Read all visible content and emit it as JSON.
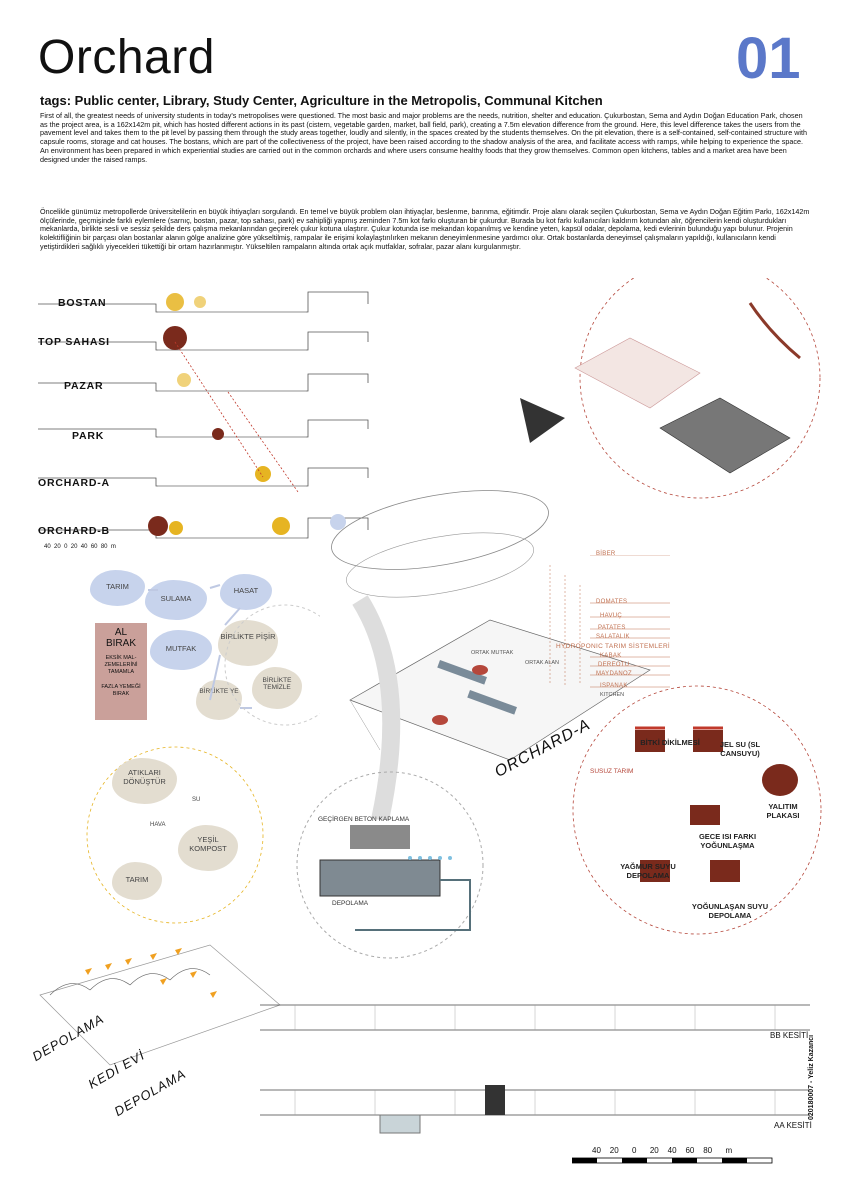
{
  "header": {
    "title": "Orchard",
    "sheet_number": "01"
  },
  "tags": "tags: Public center, Library, Study Center, Agriculture in the Metropolis, Communal Kitchen",
  "paragraph_en": "First of all, the greatest needs of university students in today's metropolises were questioned. The most basic and major problems are the needs, nutrition, shelter and education. Çukurbostan, Sema and Aydın Doğan Education Park, chosen as the project area, is a 162x142m pit, which has hosted different actions in its past (cistern, vegetable garden, market, ball field, park), creating a 7.5m elevation difference from the ground. Here, this level difference takes the users from the pavement level and takes them to the pit level by passing them through the study areas together, loudly and silently, in the spaces created by the students themselves. On the pit elevation, there is a self-contained, self-contained structure with capsule rooms, storage and cat houses. The bostans, which are part of the collectiveness of the project, have been raised according to the shadow analysis of the area, and facilitate access with ramps, while helping to experience the space. An environment has been prepared in which experiential studies are carried out in the common orchards and where users consume healthy foods that they grow themselves. Common open kitchens, tables and a market area have been designed under the raised ramps.",
  "paragraph_tr": "Öncelikle günümüz metropollerde üniversitelilerin en büyük ihtiyaçları sorgulandı. En temel ve büyük problem olan ihtiyaçlar, beslenme, barınma, eğitimdir. Proje alanı olarak seçilen Çukurbostan, Sema ve Aydın Doğan Eğitim Parkı, 162x142m ölçülerinde, geçmişinde farklı eylemlere (sarnıç, bostan, pazar, top sahası, park) ev sahipliği yapmış zeminden 7.5m kot farkı oluşturan bir çukurdur. Burada bu kot farkı kullanıcıları kaldırım kotundan alır, öğrencilerin kendi oluşturdukları mekanlarda, birlikte sesli ve sessiz şekilde ders çalışma mekanlarından geçirerek çukur kotuna ulaştırır. Çukur kotunda ise mekandan kopanılmış ve kendine yeten, kapsül odalar, depolama, kedi evlerinin bulunduğu yapı bulunur. Projenin kolektifliğinin bir parçası olan bostanlar alanın gölge analizine göre yükseltilmiş, rampalar ile erişimi kolaylaştırılırken mekanın deneyimlenmesine yardımcı olur. Ortak bostanlarda deneyimsel çalışmaların yapıldığı, kullanıcıların kendi yetiştirdikleri sağlıklı yiyecekleri tükettiği bir ortam hazırlanmıştır. Yükseltilen rampaların altında ortak açık mutfaklar, sofralar, pazar alanı kurgulanmıştır.",
  "sections": [
    "BOSTAN",
    "TOP SAHASI",
    "PAZAR",
    "PARK",
    "ORCHARD-A",
    "ORCHARD-B"
  ],
  "section_scale": [
    "40",
    "20",
    "0",
    "20",
    "40",
    "60",
    "80",
    "m"
  ],
  "cycle": {
    "tarim": "TARIM",
    "sulama": "SULAMA",
    "hasat": "HASAT",
    "mutfak": "MUTFAK",
    "birlikte_pisir": "BİRLİKTE PİŞİR",
    "birlikte_temizle": "BİRLİKTE TEMİZLE",
    "birlikte_ye": "BİRLİKTE YE"
  },
  "al_birak": {
    "title": "AL BIRAK",
    "line1": "EKSİK MAL-ZEMELERİNİ TAMAMLA",
    "line2": "FAZLA YEMEĞİ BIRAK"
  },
  "waste": {
    "atiklari": "ATIKLARI DÖNÜŞTÜR",
    "su": "SU",
    "hava": "HAVA",
    "kompost": "YEŞİL KOMPOST",
    "tarim": "TARIM"
  },
  "plants": [
    "BİBER",
    "DOMATES",
    "HAVUÇ",
    "PATATES",
    "SALATALIK",
    "HYDROPONIC TARIM SİSTEMLERİ",
    "KABAK",
    "DEREOTU",
    "MAYDANOZ",
    "ISPANAK"
  ],
  "orchard_label": "ORCHARD-A",
  "susuz_tarim": "SUSUZ TARIM",
  "plan_labels": {
    "ortak_mutfak": "ORTAK MUTFAK",
    "ortak_alan": "ORTAK ALAN",
    "kitchen": "KITCHEN"
  },
  "paving": {
    "title": "GEÇİRGEN BETON KAPLAMA",
    "depolama": "DEPOLAMA"
  },
  "dry_farming": {
    "bitki": "BİTKİ DİKİLMESİ",
    "jel": "JEL SU (SL CANSUYU)",
    "yalitim": "YALITIM PLAKASI",
    "gece": "GECE ISI FARKI YOĞUNLAŞMA",
    "yagmur": "YAĞMUR SUYU DEPOLAMA",
    "yogunlasan": "YOĞUNLAŞAN SUYU DEPOLAMA"
  },
  "axon_labels": {
    "depolama1": "DEPOLAMA",
    "kedi": "KEDİ EVİ",
    "depolama2": "DEPOLAMA"
  },
  "sections_bottom": {
    "bb": "BB KESİTİ",
    "aa": "AA KESİTİ"
  },
  "bottom_scale": [
    "40",
    "20",
    "0",
    "20",
    "40",
    "60",
    "80",
    "m"
  ],
  "author": "020180007 - Yeliz Kazancı",
  "colors": {
    "accent_blue": "#5b78c9",
    "yellow": "#e6b422",
    "brown": "#7a2a1c",
    "blob_blue": "#c7d3ec",
    "blob_beige": "#e3ddd0",
    "rose": "#caa09a"
  }
}
